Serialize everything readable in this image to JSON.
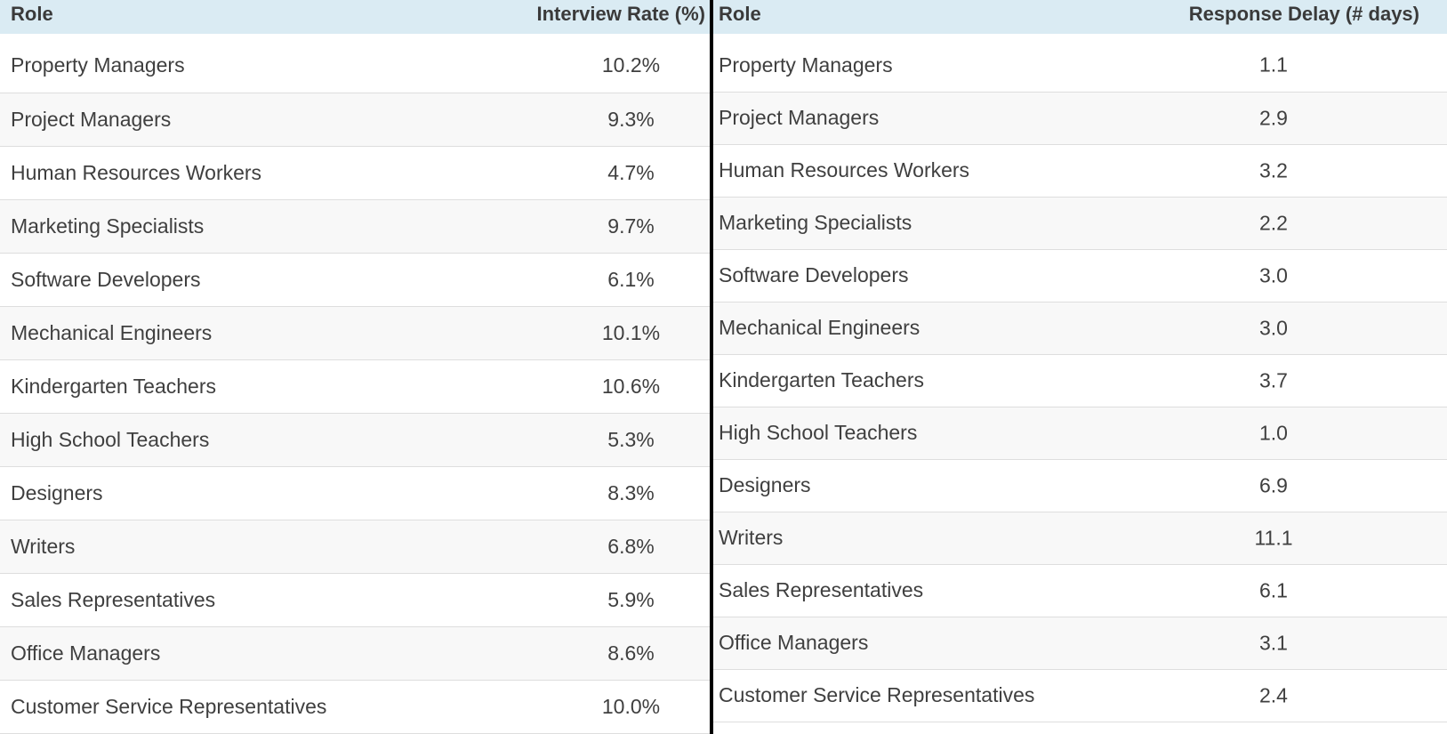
{
  "left_table": {
    "headers": [
      "Role",
      "Interview Rate (%)"
    ],
    "rows": [
      [
        "Property Managers",
        "10.2%"
      ],
      [
        "Project Managers",
        "9.3%"
      ],
      [
        "Human Resources Workers",
        "4.7%"
      ],
      [
        "Marketing Specialists",
        "9.7%"
      ],
      [
        "Software Developers",
        "6.1%"
      ],
      [
        "Mechanical Engineers",
        "10.1%"
      ],
      [
        "Kindergarten Teachers",
        "10.6%"
      ],
      [
        "High School Teachers",
        "5.3%"
      ],
      [
        "Designers",
        "8.3%"
      ],
      [
        "Writers",
        "6.8%"
      ],
      [
        "Sales Representatives",
        "5.9%"
      ],
      [
        "Office Managers",
        "8.6%"
      ],
      [
        "Customer Service Representatives",
        "10.0%"
      ]
    ]
  },
  "right_table": {
    "headers": [
      "Role",
      "Response Delay (# days)"
    ],
    "rows": [
      [
        "Property Managers",
        "1.1"
      ],
      [
        "Project Managers",
        "2.9"
      ],
      [
        "Human Resources Workers",
        "3.2"
      ],
      [
        "Marketing Specialists",
        "2.2"
      ],
      [
        "Software Developers",
        "3.0"
      ],
      [
        "Mechanical Engineers",
        "3.0"
      ],
      [
        "Kindergarten Teachers",
        "3.7"
      ],
      [
        "High School Teachers",
        "1.0"
      ],
      [
        "Designers",
        "6.9"
      ],
      [
        "Writers",
        "11.1"
      ],
      [
        "Sales Representatives",
        "6.1"
      ],
      [
        "Office Managers",
        "3.1"
      ],
      [
        "Customer Service Representatives",
        "2.4"
      ]
    ]
  }
}
